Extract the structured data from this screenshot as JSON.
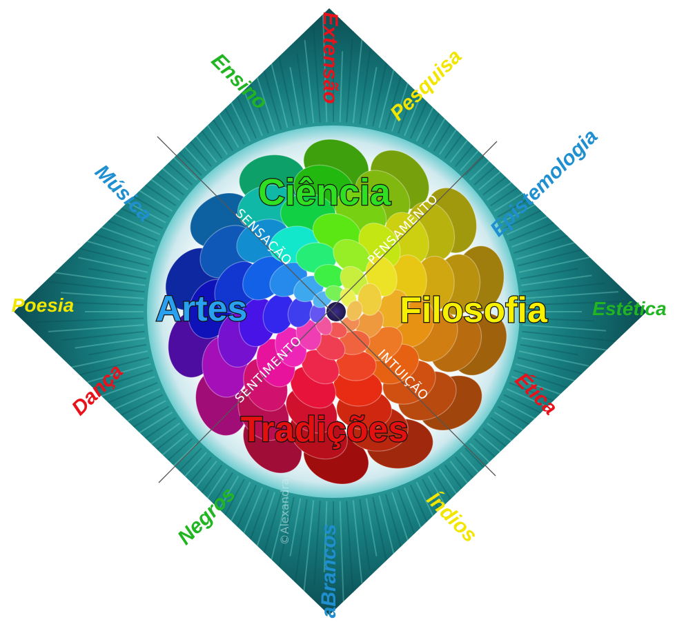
{
  "colors": {
    "teal_dark": "#0f5f63",
    "teal_light": "#5ad0c8",
    "halo": "#e9f4f6",
    "red": "#e8121c",
    "green": "#21b521",
    "yellow": "#f2e600",
    "blue": "#1f8fd0"
  },
  "center_words": {
    "ciencia": "Ciência",
    "artes": "Artes",
    "filosofia": "Filosofia",
    "tradicoes": "Tradições"
  },
  "axis_words": {
    "sensacao": "SENSAÇÃO",
    "pensamento": "PENSAMENTO",
    "sentimento": "SENTIMENTO",
    "intuicao": "INTUIÇÃO"
  },
  "outer_words": {
    "extensao": "Extensão",
    "ensino": "Ensino",
    "pesquisa": "Pesquisa",
    "musica": "Música",
    "epistemologia": "Epistemologia",
    "poesia": "Poesia",
    "estetica": "Estética",
    "danca": "Dança",
    "etica": "Ética",
    "negros": "Negros",
    "indios": "Índios",
    "brancos": "aBrancos"
  },
  "watermark": "©Alexandra"
}
